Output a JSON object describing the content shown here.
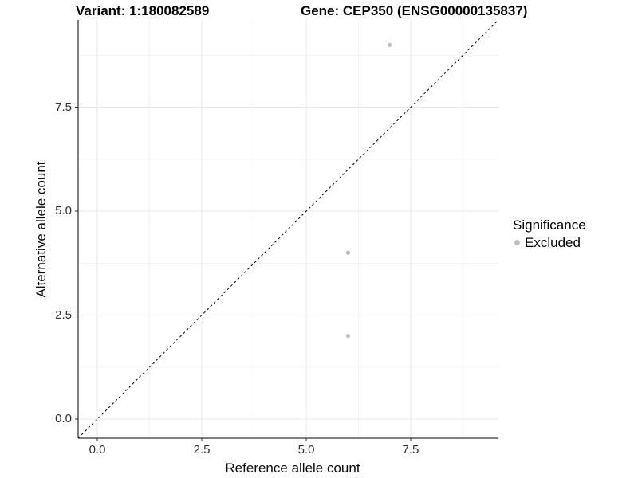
{
  "figure": {
    "title_left": "Variant: 1:180082589",
    "title_right": "Gene: CEP350 (ENSG00000135837)",
    "background": "#ffffff"
  },
  "chart_data": {
    "type": "scatter",
    "title": "Variant: 1:180082589 / Gene: CEP350 (ENSG00000135837)",
    "xlabel": "Reference allele count",
    "ylabel": "Alternative allele count",
    "xlim": [
      -0.46,
      9.6
    ],
    "ylim": [
      -0.46,
      9.6
    ],
    "x_ticks": {
      "values": [
        0,
        2.5,
        5,
        7.5
      ],
      "labels": [
        "0.0",
        "2.5",
        "5.0",
        "7.5"
      ]
    },
    "y_ticks": {
      "values": [
        0,
        2.5,
        5,
        7.5
      ],
      "labels": [
        "0.0",
        "2.5",
        "5.0",
        "7.5"
      ]
    },
    "minor_grid": [
      1.25,
      3.75,
      6.25,
      8.75
    ],
    "grid": "major+minor",
    "series": [
      {
        "name": "Excluded",
        "marker": "circle",
        "color": "#bebebe",
        "points": [
          {
            "x": 7,
            "y": 9
          },
          {
            "x": 6,
            "y": 4
          },
          {
            "x": 6,
            "y": 2
          }
        ]
      }
    ],
    "identity_line": {
      "slope": 1,
      "intercept": 0,
      "style": "dashed",
      "color": "#000000"
    },
    "legend": {
      "title": "Significance",
      "position": "right",
      "entries": [
        {
          "label": "Excluded",
          "color": "#bebebe",
          "marker": "circle"
        }
      ]
    }
  },
  "colors": {
    "grid_major": "#e8e8e8",
    "grid_minor": "#f4f4f4",
    "axis_line": "#000000",
    "tick_mark": "#333333",
    "point": "#bebebe"
  }
}
